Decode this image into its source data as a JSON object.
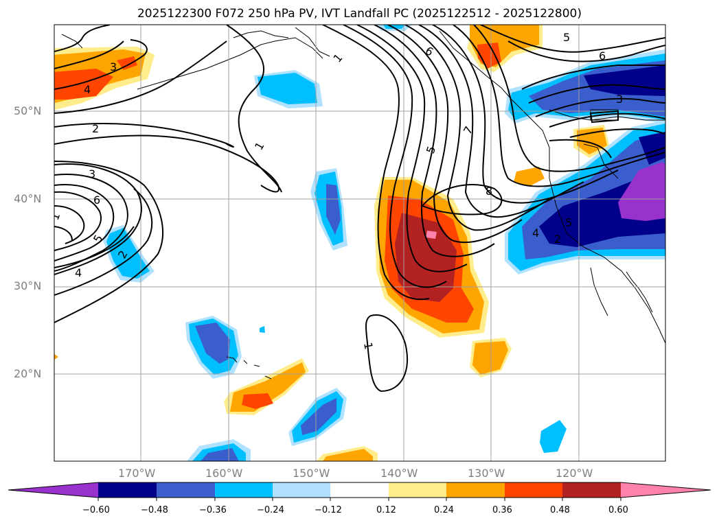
{
  "title": "2025122300 F072 250 hPa PV, IVT Landfall PC (2025122512 - 2025122800)",
  "lat_ticks": [
    "50°N",
    "40°N",
    "30°N",
    "20°N"
  ],
  "lon_ticks": [
    "170°W",
    "160°W",
    "150°W",
    "140°W",
    "130°W",
    "120°W"
  ],
  "contour_labels": [
    "1",
    "1",
    "1",
    "1",
    "2",
    "2",
    "2",
    "3",
    "3",
    "3",
    "4",
    "4",
    "4",
    "5",
    "5",
    "5",
    "5",
    "6",
    "6",
    "6",
    "7",
    "8"
  ],
  "colorbar": {
    "ticks": [
      "−0.60",
      "−0.48",
      "−0.36",
      "−0.24",
      "−0.12",
      "0.12",
      "0.24",
      "0.36",
      "0.48",
      "0.60"
    ],
    "colors": [
      "#9932cc",
      "#00008b",
      "#3a5fcd",
      "#00bfff",
      "#b0e2ff",
      "#ffffff",
      "#ffec8b",
      "#ffa500",
      "#ff4500",
      "#b22222",
      "#ff82ab"
    ]
  },
  "colors": {
    "neg_strong": "#9932cc",
    "neg_dark": "#00008b",
    "neg_mid": "#3a5fcd",
    "neg_light": "#00bfff",
    "neg_pale": "#b0e2ff",
    "pos_pale": "#ffec8b",
    "pos_light": "#ffa500",
    "pos_mid": "#ff4500",
    "pos_dark": "#b22222",
    "pos_strong": "#ff82ab",
    "grid": "#a0a0a0",
    "contour": "#000000"
  }
}
